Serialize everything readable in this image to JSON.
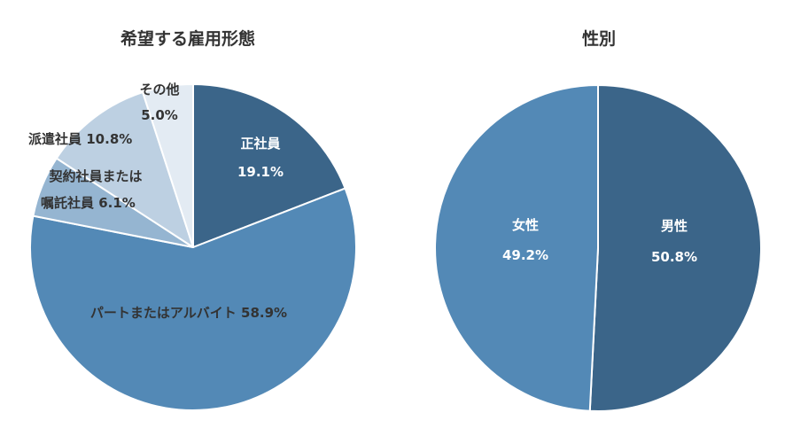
{
  "chart_data": [
    {
      "type": "pie",
      "title": "希望する雇用形態",
      "slices": [
        {
          "label": "正社員",
          "value": 19.1,
          "value_text": "19.1%",
          "color": "#3b6589"
        },
        {
          "label": "パートまたはアルバイト",
          "value": 58.9,
          "value_text": "58.9%",
          "color": "#5389b6"
        },
        {
          "label": "契約社員または嘱託社員",
          "value": 6.1,
          "value_text": "6.1%",
          "color": "#95b5d1"
        },
        {
          "label": "派遣社員",
          "value": 10.8,
          "value_text": "10.8%",
          "color": "#bdd0e2"
        },
        {
          "label": "その他",
          "value": 5.0,
          "value_text": "5.0%",
          "color": "#e3ebf3"
        }
      ]
    },
    {
      "type": "pie",
      "title": "性別",
      "slices": [
        {
          "label": "男性",
          "value": 50.8,
          "value_text": "50.8%",
          "color": "#3b6589"
        },
        {
          "label": "女性",
          "value": 49.2,
          "value_text": "49.2%",
          "color": "#5389b6"
        }
      ]
    }
  ]
}
